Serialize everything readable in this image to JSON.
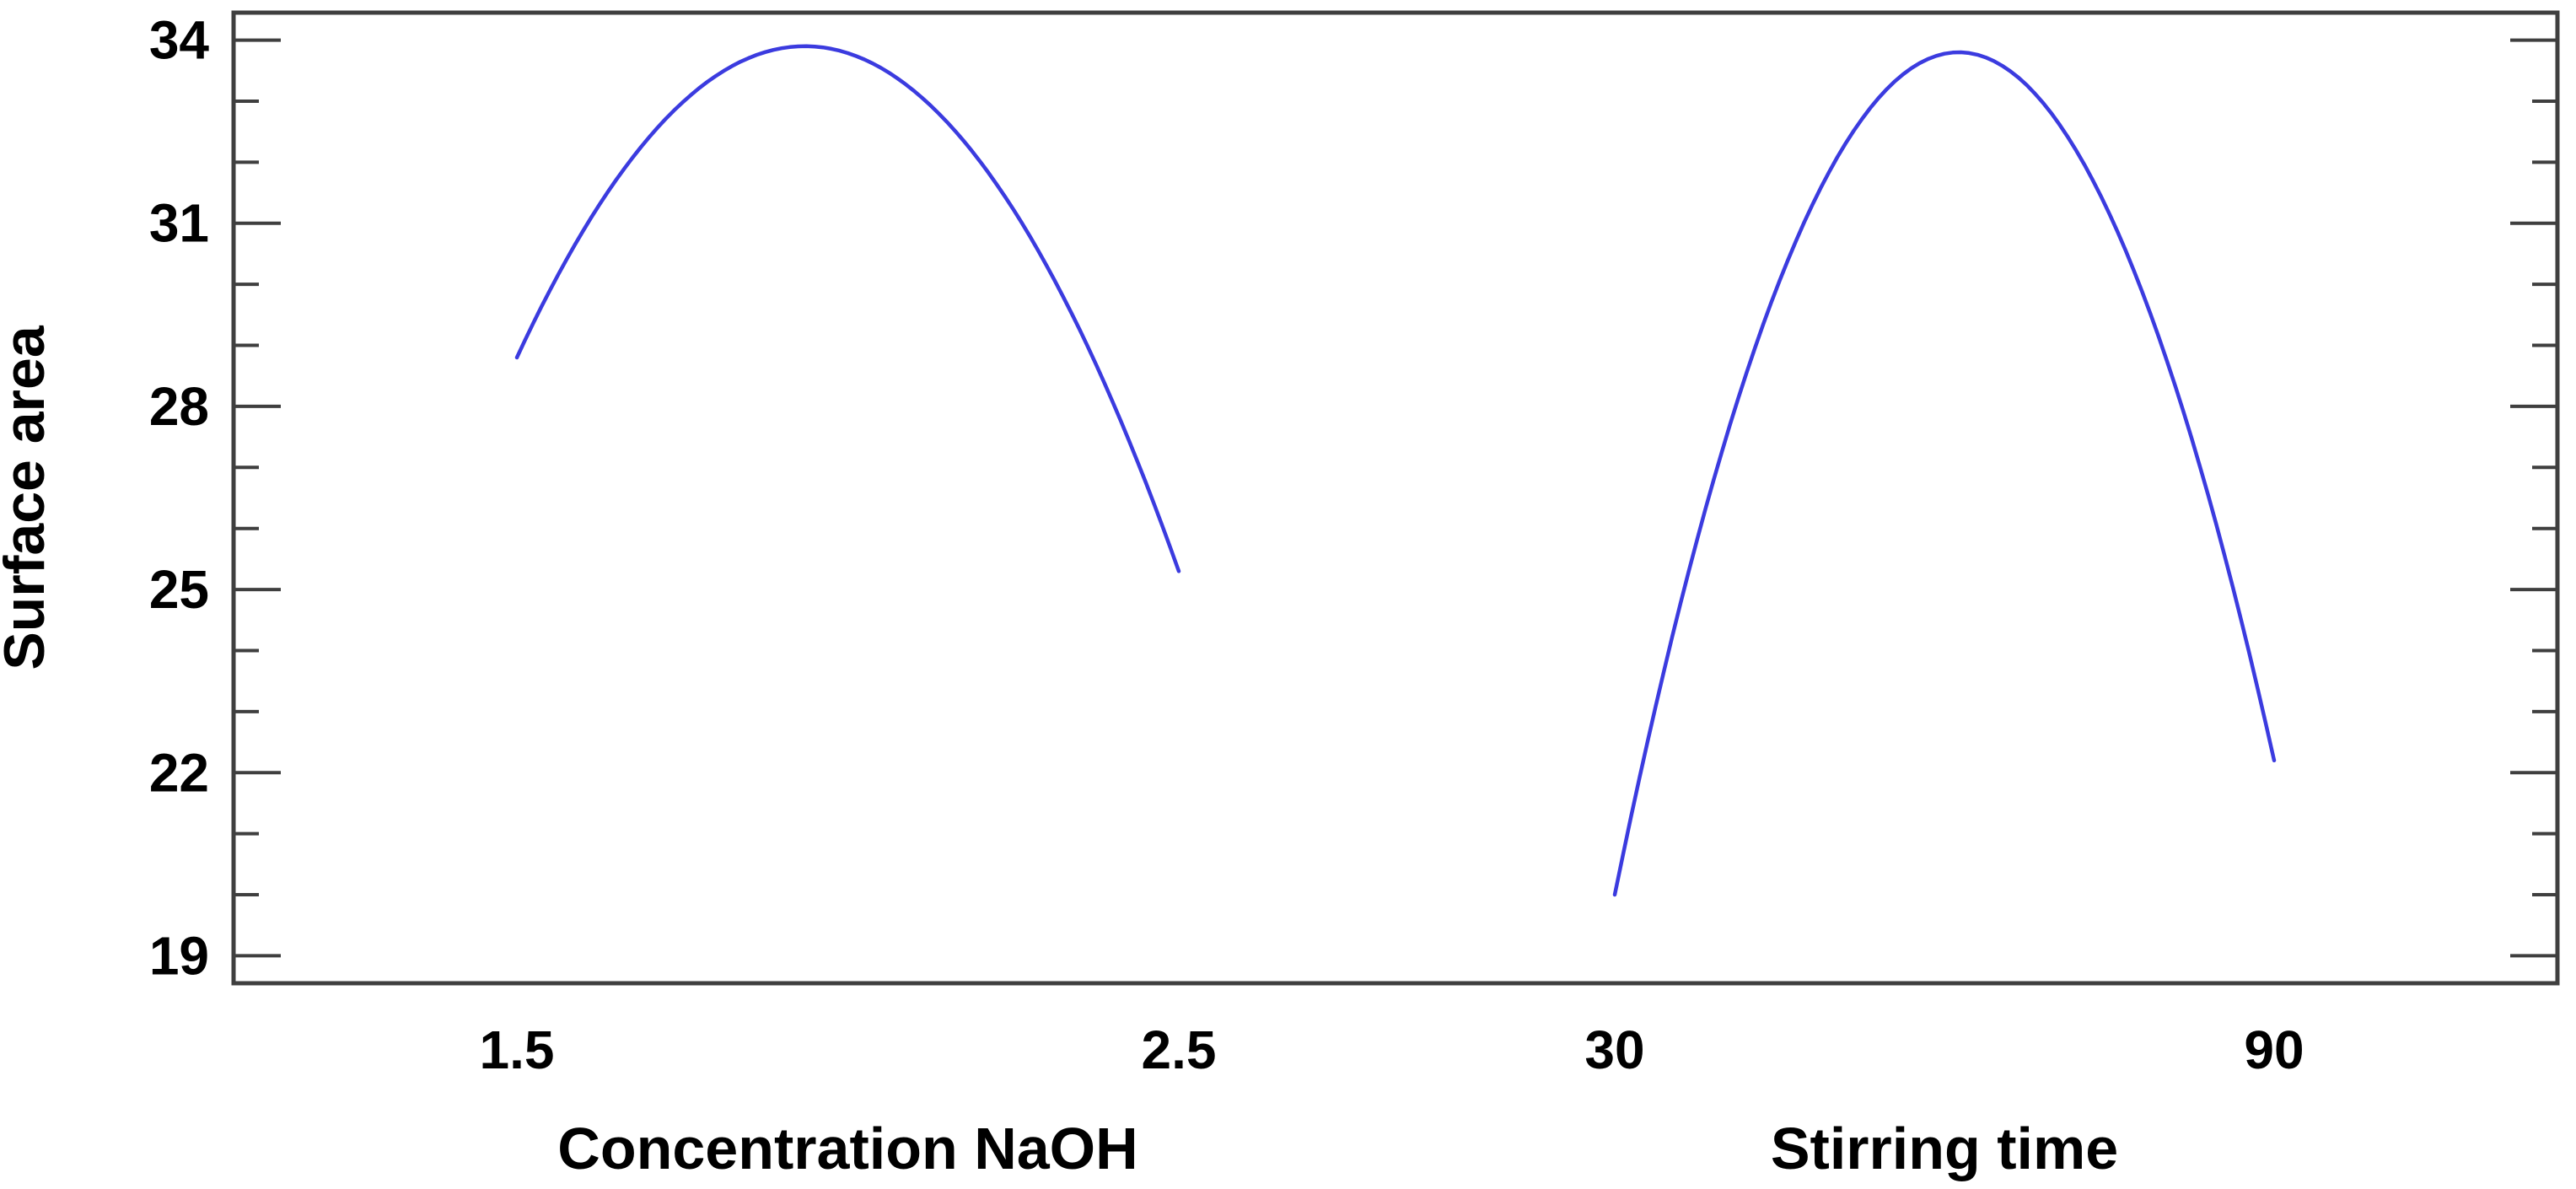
{
  "figure": {
    "background": "#ffffff"
  },
  "chart_data": {
    "type": "line",
    "title": "",
    "subtitle": "",
    "ylabel": "Surface area",
    "ylim": [
      18.55,
      34.45
    ],
    "grid": false,
    "legend": null,
    "yticks": {
      "values": [
        19,
        22,
        25,
        28,
        31,
        34
      ],
      "labels": [
        "19",
        "22",
        "25",
        "28",
        "31",
        "34"
      ],
      "minor_step": 1,
      "minor_range": [
        19,
        34
      ]
    },
    "panels": [
      {
        "xlabel": "Concentration NaOH",
        "xlim": [
          1.5,
          2.5
        ],
        "xticks": {
          "values": [
            1.5,
            2.5
          ],
          "labels": [
            "1.5",
            "2.5"
          ]
        },
        "curve": {
          "x": [
            1.5,
            1.94,
            2.5
          ],
          "y": [
            28.8,
            33.9,
            25.3
          ],
          "peak_x": 1.94,
          "peak_y": 33.9,
          "start_y": 28.8,
          "end_y": 25.3
        }
      },
      {
        "xlabel": "Stirring time",
        "xlim": [
          30,
          90
        ],
        "xticks": {
          "values": [
            30,
            90
          ],
          "labels": [
            "30",
            "90"
          ]
        },
        "curve": {
          "x": [
            30,
            61,
            90
          ],
          "y": [
            20.0,
            33.8,
            22.2
          ],
          "peak_x": 61,
          "peak_y": 33.8,
          "start_y": 20.0,
          "end_y": 22.2
        }
      }
    ],
    "colors": {
      "line": "#3b3bdf",
      "axis": "#3f3f3f",
      "text": "#000000",
      "background": "#ffffff"
    }
  }
}
